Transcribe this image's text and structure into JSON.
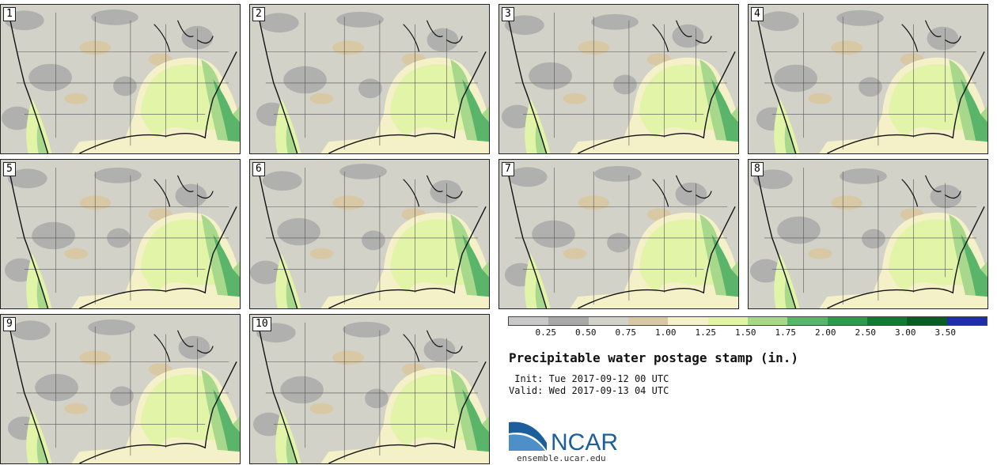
{
  "panels": [
    {
      "label": "1"
    },
    {
      "label": "2"
    },
    {
      "label": "3"
    },
    {
      "label": "4"
    },
    {
      "label": "5"
    },
    {
      "label": "6"
    },
    {
      "label": "7"
    },
    {
      "label": "8"
    },
    {
      "label": "9"
    },
    {
      "label": "10"
    }
  ],
  "legend": {
    "colors": [
      "#c8c8c8",
      "#a8a8a8",
      "#d2d2c8",
      "#d8c8a4",
      "#f4f0c8",
      "#e2f4a8",
      "#a8d88c",
      "#5ab46a",
      "#2e9a4c",
      "#147a32",
      "#0a5c22",
      "#1e2cb0"
    ],
    "ticks": [
      "0.25",
      "0.50",
      "0.75",
      "1.00",
      "1.25",
      "1.50",
      "1.75",
      "2.00",
      "2.50",
      "3.00",
      "3.50"
    ]
  },
  "title": "Precipitable water postage stamp (in.)",
  "init": " Init: Tue 2017-09-12 00 UTC",
  "valid": "Valid: Wed 2017-09-13 04 UTC",
  "logo_text": "NCAR",
  "site": "ensemble.ucar.edu"
}
